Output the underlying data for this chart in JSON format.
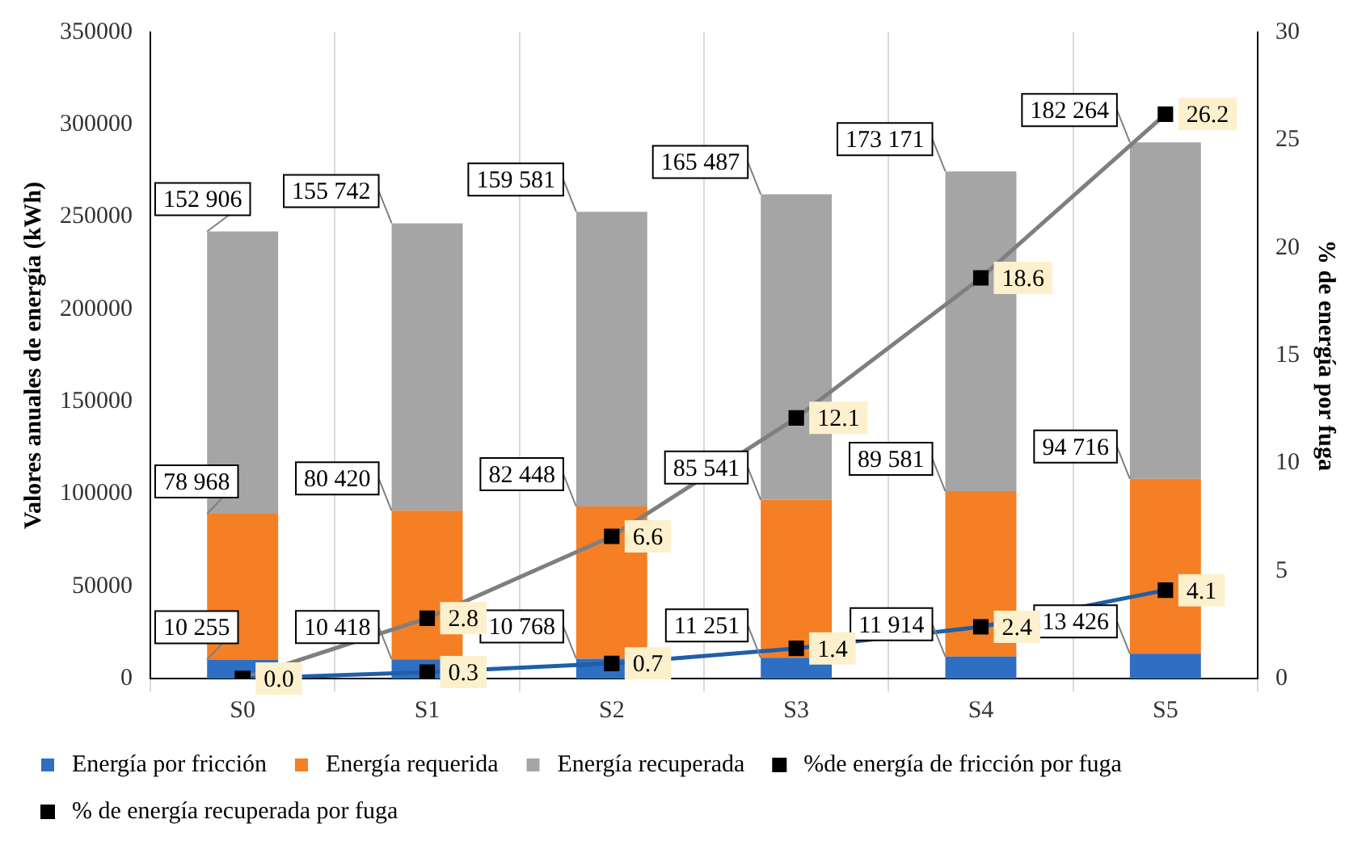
{
  "chart_data": {
    "type": "bar",
    "stacked": true,
    "ylabel": "Valores anuales de energía (kWh)",
    "y2label": "% de energía por fuga",
    "categories": [
      "S0",
      "S1",
      "S2",
      "S3",
      "S4",
      "S5"
    ],
    "series": [
      {
        "name": "Energía por fricción",
        "color": "#2e6fc4",
        "values": [
          10255,
          10418,
          10768,
          11251,
          11914,
          13426
        ],
        "value_labels": [
          "10 255",
          "10 418",
          "10 768",
          "11 251",
          "11 914",
          "13 426"
        ]
      },
      {
        "name": "Energía requerida",
        "color": "#f47f24",
        "values": [
          78968,
          80420,
          82448,
          85541,
          89581,
          94716
        ],
        "value_labels": [
          "78 968",
          "80 420",
          "82 448",
          "85 541",
          "89 581",
          "94 716"
        ]
      },
      {
        "name": "Energía recuperada",
        "color": "#a5a5a5",
        "values": [
          152906,
          155742,
          159581,
          165487,
          173171,
          182264
        ],
        "value_labels": [
          "152 906",
          "155 742",
          "159 581",
          "165 487",
          "173 171",
          "182 264"
        ]
      },
      {
        "name": "%de energía de fricción por fuga",
        "type": "line",
        "axis": "y2",
        "color": "#1f5fa8",
        "values": [
          0.0,
          0.3,
          0.7,
          1.4,
          2.4,
          4.1
        ],
        "value_labels": [
          "0.0",
          "0.3",
          "0.7",
          "1.4",
          "2.4",
          "4.1"
        ]
      },
      {
        "name": "% de energía recuperada por fuga",
        "type": "line",
        "axis": "y2",
        "color": "#7f7f7f",
        "values": [
          0.0,
          2.8,
          6.6,
          12.1,
          18.6,
          26.2
        ],
        "value_labels": [
          null,
          "2.8",
          "6.6",
          "12.1",
          "18.6",
          "26.2"
        ]
      }
    ],
    "ylim": [
      0,
      350000
    ],
    "yticks": [
      0,
      50000,
      100000,
      150000,
      200000,
      250000,
      300000,
      350000
    ],
    "y2lim": [
      0,
      30
    ],
    "y2ticks": [
      0,
      5,
      10,
      15,
      20,
      25,
      30
    ],
    "grid": "x",
    "legend": "bottom",
    "marker": "square",
    "line_style": "solid"
  }
}
